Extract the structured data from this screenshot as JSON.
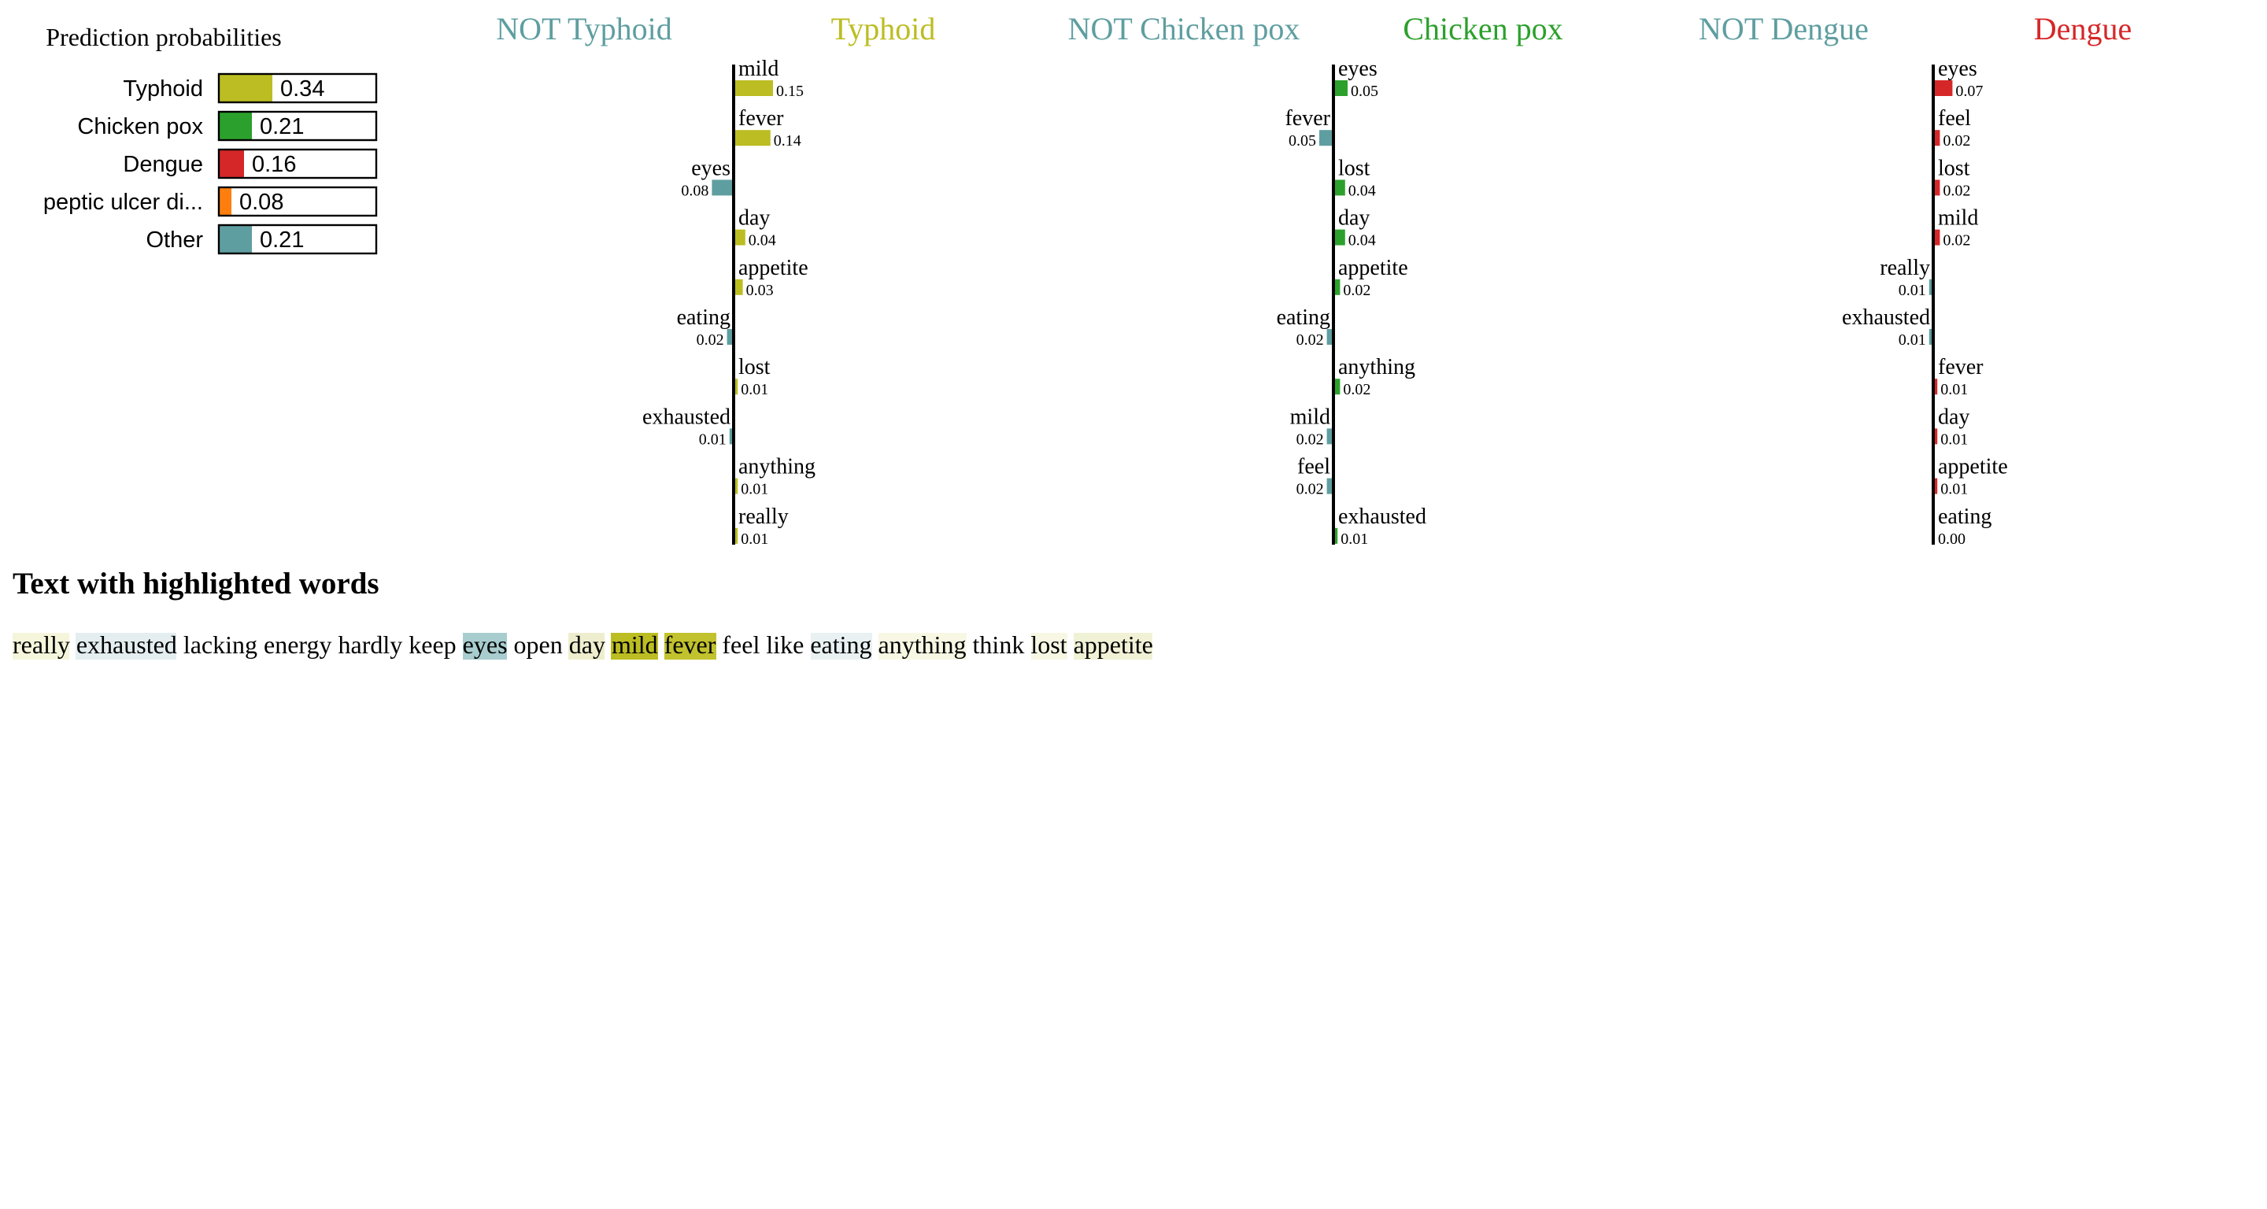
{
  "colors": {
    "Typhoid": "#bcbd22",
    "Chicken pox": "#2ca02c",
    "Dengue": "#d62728",
    "peptic ulcer di...": "#ff7f0e",
    "Other": "#5f9ea0",
    "not_color": "#5f9ea0"
  },
  "probabilities": {
    "title": "Prediction probabilities",
    "items": [
      {
        "label": "Typhoid",
        "value": 0.34,
        "value_text": "0.34"
      },
      {
        "label": "Chicken pox",
        "value": 0.21,
        "value_text": "0.21"
      },
      {
        "label": "Dengue",
        "value": 0.16,
        "value_text": "0.16"
      },
      {
        "label": "peptic ulcer di...",
        "value": 0.08,
        "value_text": "0.08"
      },
      {
        "label": "Other",
        "value": 0.21,
        "value_text": "0.21"
      }
    ]
  },
  "chart_data": [
    {
      "type": "bar",
      "class": "Typhoid",
      "negative_label": "NOT Typhoid",
      "positive_label": "Typhoid",
      "features": [
        {
          "word": "mild",
          "weight": 0.15,
          "value_text": "0.15"
        },
        {
          "word": "fever",
          "weight": 0.14,
          "value_text": "0.14"
        },
        {
          "word": "eyes",
          "weight": -0.08,
          "value_text": "0.08"
        },
        {
          "word": "day",
          "weight": 0.04,
          "value_text": "0.04"
        },
        {
          "word": "appetite",
          "weight": 0.03,
          "value_text": "0.03"
        },
        {
          "word": "eating",
          "weight": -0.02,
          "value_text": "0.02"
        },
        {
          "word": "lost",
          "weight": 0.01,
          "value_text": "0.01"
        },
        {
          "word": "exhausted",
          "weight": -0.01,
          "value_text": "0.01"
        },
        {
          "word": "anything",
          "weight": 0.01,
          "value_text": "0.01"
        },
        {
          "word": "really",
          "weight": 0.01,
          "value_text": "0.01"
        }
      ]
    },
    {
      "type": "bar",
      "class": "Chicken pox",
      "negative_label": "NOT Chicken pox",
      "positive_label": "Chicken pox",
      "features": [
        {
          "word": "eyes",
          "weight": 0.05,
          "value_text": "0.05"
        },
        {
          "word": "fever",
          "weight": -0.05,
          "value_text": "0.05"
        },
        {
          "word": "lost",
          "weight": 0.04,
          "value_text": "0.04"
        },
        {
          "word": "day",
          "weight": 0.04,
          "value_text": "0.04"
        },
        {
          "word": "appetite",
          "weight": 0.02,
          "value_text": "0.02"
        },
        {
          "word": "eating",
          "weight": -0.02,
          "value_text": "0.02"
        },
        {
          "word": "anything",
          "weight": 0.02,
          "value_text": "0.02"
        },
        {
          "word": "mild",
          "weight": -0.02,
          "value_text": "0.02"
        },
        {
          "word": "feel",
          "weight": -0.02,
          "value_text": "0.02"
        },
        {
          "word": "exhausted",
          "weight": 0.01,
          "value_text": "0.01"
        }
      ]
    },
    {
      "type": "bar",
      "class": "Dengue",
      "negative_label": "NOT Dengue",
      "positive_label": "Dengue",
      "features": [
        {
          "word": "eyes",
          "weight": 0.07,
          "value_text": "0.07"
        },
        {
          "word": "feel",
          "weight": 0.02,
          "value_text": "0.02"
        },
        {
          "word": "lost",
          "weight": 0.02,
          "value_text": "0.02"
        },
        {
          "word": "mild",
          "weight": 0.02,
          "value_text": "0.02"
        },
        {
          "word": "really",
          "weight": -0.01,
          "value_text": "0.01"
        },
        {
          "word": "exhausted",
          "weight": -0.01,
          "value_text": "0.01"
        },
        {
          "word": "fever",
          "weight": 0.01,
          "value_text": "0.01"
        },
        {
          "word": "day",
          "weight": 0.01,
          "value_text": "0.01"
        },
        {
          "word": "appetite",
          "weight": 0.01,
          "value_text": "0.01"
        },
        {
          "word": "eating",
          "weight": 0.0,
          "value_text": "0.00"
        }
      ]
    }
  ],
  "highlighted_text": {
    "heading": "Text with highlighted words",
    "words": [
      {
        "text": "really",
        "bg": "#f5f5dc",
        "alpha": 0.15
      },
      {
        "text": "exhausted",
        "bg": "#e4eef0",
        "alpha": 0.25
      },
      {
        "text": "lacking",
        "bg": "",
        "alpha": 0
      },
      {
        "text": "energy",
        "bg": "",
        "alpha": 0
      },
      {
        "text": "hardly",
        "bg": "",
        "alpha": 0
      },
      {
        "text": "keep",
        "bg": "",
        "alpha": 0
      },
      {
        "text": "eyes",
        "bg": "#a8cdcf",
        "alpha": 1
      },
      {
        "text": "open",
        "bg": "",
        "alpha": 0
      },
      {
        "text": "day",
        "bg": "#eeeecf",
        "alpha": 1
      },
      {
        "text": "mild",
        "bg": "#bcbd22",
        "alpha": 1
      },
      {
        "text": "fever",
        "bg": "#c1c22e",
        "alpha": 1
      },
      {
        "text": "feel",
        "bg": "",
        "alpha": 0
      },
      {
        "text": "like",
        "bg": "",
        "alpha": 0
      },
      {
        "text": "eating",
        "bg": "#e9f1f2",
        "alpha": 1
      },
      {
        "text": "anything",
        "bg": "#f7f7e4",
        "alpha": 1
      },
      {
        "text": "think",
        "bg": "",
        "alpha": 0
      },
      {
        "text": "lost",
        "bg": "#f7f7e4",
        "alpha": 1
      },
      {
        "text": "appetite",
        "bg": "#f1f1d6",
        "alpha": 1
      }
    ]
  }
}
